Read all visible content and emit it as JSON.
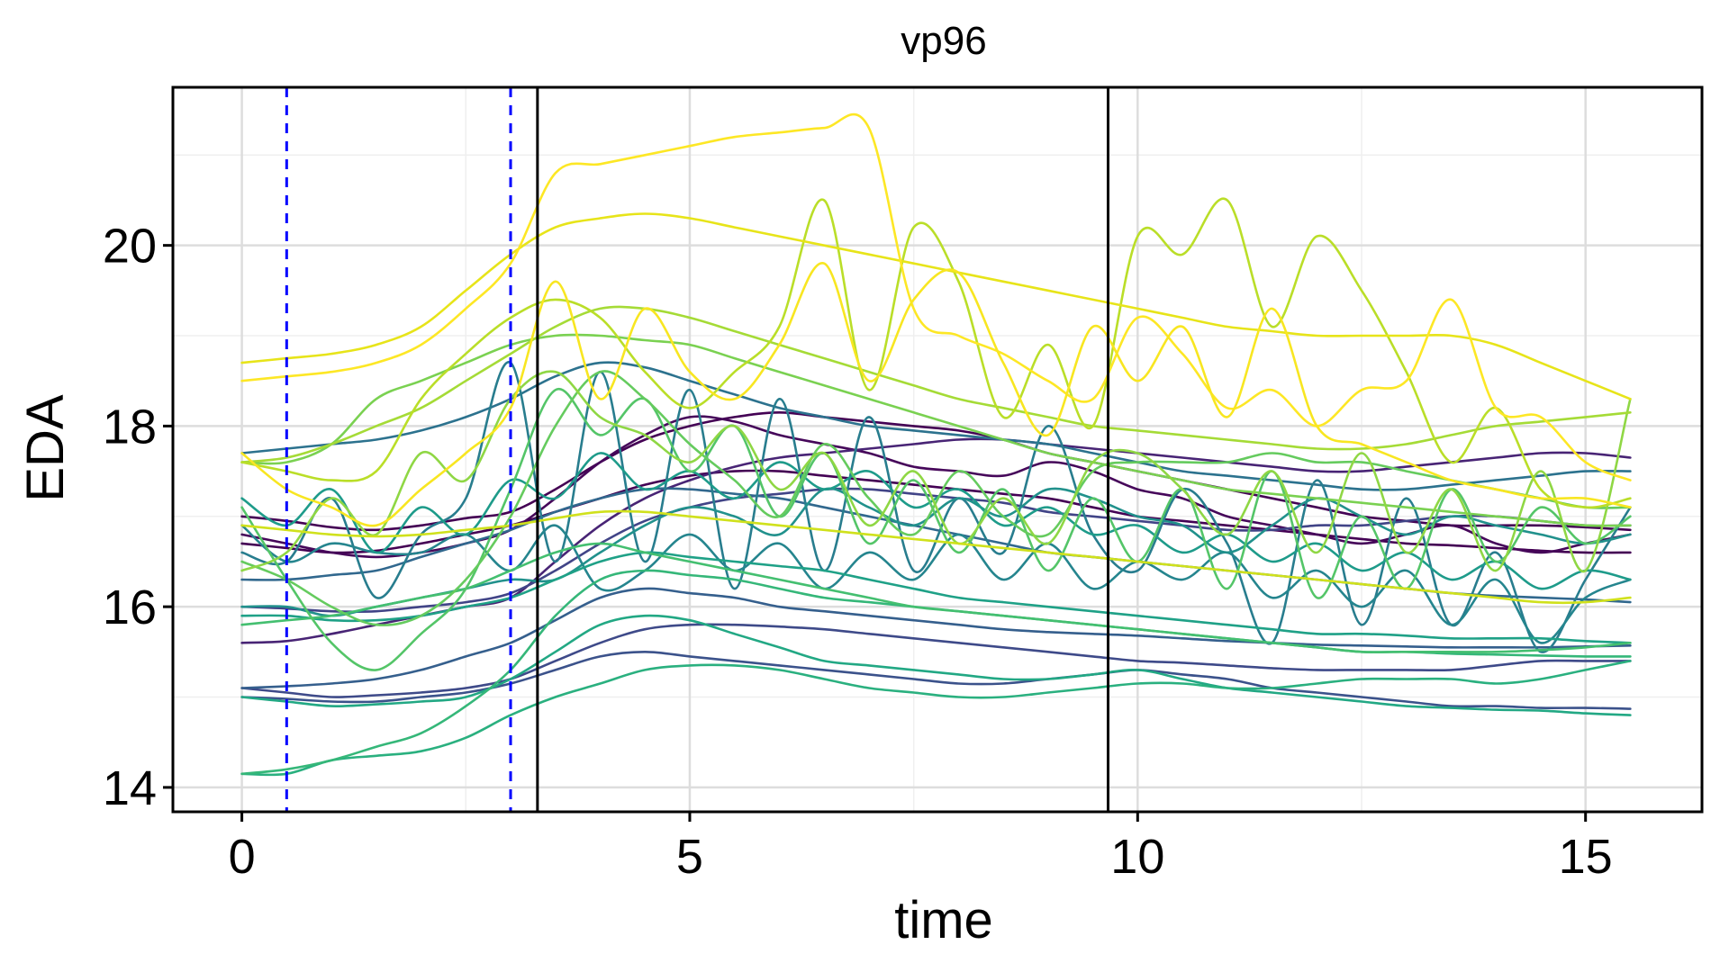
{
  "chart_data": {
    "type": "line",
    "title": "vp96",
    "xlabel": "time",
    "ylabel": "EDA",
    "xlim": [
      -0.77,
      16.3
    ],
    "ylim": [
      13.73,
      21.75
    ],
    "x_ticks": [
      0,
      5,
      10,
      15
    ],
    "x_tick_labels": [
      "0",
      "5",
      "10",
      "15"
    ],
    "y_ticks": [
      14,
      16,
      18,
      20
    ],
    "y_tick_labels": [
      "14",
      "16",
      "18",
      "20"
    ],
    "grid": true,
    "legend": "none",
    "colors": {
      "grid_major": "#dddddd",
      "grid_minor": "#efefef",
      "marker_dashed": "#0000ff",
      "marker_solid": "#000000"
    },
    "vlines": [
      {
        "x": 0.5,
        "style": "dashed",
        "color": "#0000ff"
      },
      {
        "x": 3.0,
        "style": "dashed",
        "color": "#0000ff"
      },
      {
        "x": 3.3,
        "style": "solid",
        "color": "#000000"
      },
      {
        "x": 9.67,
        "style": "solid",
        "color": "#000000"
      }
    ],
    "x": [
      0,
      0.5,
      1,
      1.5,
      2,
      2.5,
      3,
      3.5,
      4,
      4.5,
      5,
      5.5,
      6,
      6.5,
      7,
      7.5,
      8,
      8.5,
      9,
      9.5,
      10,
      10.5,
      11,
      11.5,
      12,
      12.5,
      13,
      13.5,
      14,
      14.5,
      15,
      15.5
    ],
    "series": [
      {
        "color": "#440154",
        "values": [
          17.0,
          16.95,
          16.88,
          16.85,
          16.9,
          16.98,
          17.05,
          17.3,
          17.6,
          17.85,
          18.0,
          18.1,
          18.15,
          18.1,
          18.05,
          18.0,
          17.95,
          17.85,
          17.7,
          17.6,
          17.5,
          17.4,
          17.3,
          17.2,
          17.1,
          17.0,
          16.95,
          16.9,
          16.9,
          16.9,
          16.88,
          16.85
        ]
      },
      {
        "color": "#440154",
        "values": [
          16.7,
          16.65,
          16.6,
          16.62,
          16.7,
          16.8,
          16.9,
          17.05,
          17.2,
          17.35,
          17.45,
          17.5,
          17.5,
          17.45,
          17.4,
          17.35,
          17.3,
          17.25,
          17.2,
          17.1,
          17.0,
          16.95,
          16.9,
          16.85,
          16.8,
          16.75,
          16.7,
          16.68,
          16.65,
          16.62,
          16.6,
          16.6
        ]
      },
      {
        "color": "#46075a",
        "values": [
          16.8,
          16.7,
          16.6,
          16.55,
          16.6,
          16.7,
          16.85,
          17.2,
          17.6,
          17.9,
          18.1,
          18.05,
          17.9,
          17.8,
          17.7,
          17.55,
          17.5,
          17.45,
          17.6,
          17.5,
          17.3,
          17.2,
          17.0,
          16.9,
          16.8,
          16.7,
          16.8,
          16.9,
          16.7,
          16.6,
          16.7,
          16.8
        ]
      },
      {
        "color": "#482475",
        "values": [
          15.6,
          15.62,
          15.7,
          15.8,
          15.9,
          16.0,
          16.1,
          16.5,
          16.9,
          17.2,
          17.4,
          17.55,
          17.65,
          17.7,
          17.75,
          17.8,
          17.85,
          17.85,
          17.8,
          17.75,
          17.7,
          17.65,
          17.6,
          17.55,
          17.5,
          17.5,
          17.55,
          17.6,
          17.65,
          17.7,
          17.7,
          17.65
        ]
      },
      {
        "color": "#414487",
        "values": [
          16.0,
          15.98,
          15.95,
          15.95,
          16.0,
          16.05,
          16.15,
          16.4,
          16.7,
          16.95,
          17.1,
          17.2,
          17.25,
          17.3,
          17.3,
          17.25,
          17.2,
          17.15,
          17.05,
          17.0,
          16.95,
          16.9,
          16.85,
          16.85,
          16.9,
          16.9,
          16.95,
          17.0,
          17.0,
          16.95,
          16.9,
          16.9
        ]
      },
      {
        "color": "#3e4a89",
        "values": [
          15.1,
          15.05,
          15.0,
          15.02,
          15.05,
          15.1,
          15.2,
          15.4,
          15.6,
          15.75,
          15.8,
          15.8,
          15.78,
          15.75,
          15.7,
          15.65,
          15.6,
          15.55,
          15.5,
          15.45,
          15.4,
          15.38,
          15.35,
          15.32,
          15.3,
          15.3,
          15.3,
          15.3,
          15.35,
          15.4,
          15.4,
          15.4
        ]
      },
      {
        "color": "#3b528b",
        "values": [
          15.0,
          14.98,
          14.95,
          14.95,
          15.0,
          15.05,
          15.15,
          15.3,
          15.45,
          15.5,
          15.45,
          15.4,
          15.35,
          15.3,
          15.25,
          15.2,
          15.15,
          15.15,
          15.2,
          15.25,
          15.3,
          15.25,
          15.2,
          15.1,
          15.05,
          15.0,
          14.95,
          14.9,
          14.9,
          14.88,
          14.88,
          14.87
        ]
      },
      {
        "color": "#355f8d",
        "values": [
          15.1,
          15.12,
          15.15,
          15.2,
          15.3,
          15.45,
          15.6,
          15.85,
          16.1,
          16.2,
          16.15,
          16.1,
          16.0,
          15.95,
          15.9,
          15.85,
          15.8,
          15.75,
          15.72,
          15.7,
          15.68,
          15.65,
          15.62,
          15.6,
          15.58,
          15.57,
          15.56,
          15.55,
          15.55,
          15.55,
          15.56,
          15.57
        ]
      },
      {
        "color": "#31688e",
        "values": [
          16.3,
          16.3,
          16.35,
          16.4,
          16.55,
          16.7,
          16.85,
          17.05,
          17.2,
          17.3,
          17.3,
          17.25,
          17.2,
          17.1,
          17.0,
          16.9,
          16.8,
          16.7,
          16.6,
          16.55,
          16.5,
          16.45,
          16.4,
          16.35,
          16.3,
          16.25,
          16.2,
          16.15,
          16.12,
          16.1,
          16.08,
          16.05
        ]
      },
      {
        "color": "#2c728e",
        "values": [
          17.7,
          17.75,
          17.8,
          17.85,
          17.95,
          18.1,
          18.3,
          18.55,
          18.7,
          18.65,
          18.5,
          18.35,
          18.2,
          18.1,
          18.0,
          17.95,
          17.9,
          17.85,
          17.8,
          17.7,
          17.6,
          17.5,
          17.45,
          17.4,
          17.35,
          17.3,
          17.3,
          17.35,
          17.4,
          17.45,
          17.5,
          17.5
        ]
      },
      {
        "color": "#287d8e",
        "values": [
          16.6,
          16.5,
          17.2,
          16.1,
          16.8,
          17.2,
          18.7,
          16.5,
          18.6,
          16.5,
          18.4,
          16.2,
          18.3,
          16.4,
          18.1,
          16.4,
          17.2,
          16.6,
          18.0,
          16.8,
          16.4,
          17.3,
          16.7,
          15.6,
          17.4,
          15.8,
          17.2,
          15.8,
          16.6,
          15.5,
          16.3,
          17.1
        ]
      },
      {
        "color": "#25858e",
        "values": [
          16.9,
          16.5,
          16.7,
          16.6,
          16.6,
          16.8,
          16.4,
          16.9,
          16.2,
          16.4,
          16.8,
          16.4,
          16.7,
          16.2,
          16.6,
          16.3,
          16.8,
          16.3,
          16.7,
          16.2,
          16.5,
          16.3,
          16.6,
          16.1,
          16.4,
          16.0,
          16.4,
          15.8,
          16.3,
          15.6,
          16.1,
          16.3
        ]
      },
      {
        "color": "#21918c",
        "values": [
          16.0,
          16.0,
          15.9,
          16.0,
          16.1,
          16.2,
          16.3,
          16.3,
          16.6,
          16.9,
          17.1,
          17.0,
          16.8,
          17.3,
          17.1,
          16.9,
          17.2,
          17.0,
          17.3,
          17.2,
          17.0,
          16.9,
          16.6,
          16.9,
          17.2,
          17.0,
          16.8,
          17.0,
          16.9,
          16.8,
          16.7,
          16.8
        ]
      },
      {
        "color": "#1e9b8a",
        "values": [
          17.2,
          16.9,
          17.3,
          16.6,
          17.1,
          16.8,
          17.4,
          17.2,
          17.7,
          17.3,
          17.5,
          17.2,
          17.6,
          17.3,
          17.5,
          17.1,
          17.3,
          16.9,
          17.1,
          16.8,
          16.9,
          16.6,
          16.8,
          16.5,
          16.7,
          16.4,
          16.6,
          16.3,
          16.5,
          16.2,
          16.4,
          16.3
        ]
      },
      {
        "color": "#1fa187",
        "values": [
          15.9,
          15.9,
          15.85,
          15.85,
          15.9,
          16.0,
          16.1,
          16.3,
          16.5,
          16.6,
          16.55,
          16.5,
          16.45,
          16.4,
          16.3,
          16.2,
          16.1,
          16.05,
          16.0,
          15.95,
          15.9,
          15.85,
          15.8,
          15.75,
          15.7,
          15.7,
          15.68,
          15.65,
          15.65,
          15.65,
          15.62,
          15.6
        ]
      },
      {
        "color": "#22a884",
        "values": [
          15.0,
          14.95,
          14.9,
          14.92,
          14.95,
          15.0,
          15.2,
          15.5,
          15.8,
          15.9,
          15.85,
          15.7,
          15.55,
          15.4,
          15.35,
          15.3,
          15.25,
          15.2,
          15.2,
          15.25,
          15.3,
          15.2,
          15.1,
          15.05,
          15.0,
          14.95,
          14.9,
          14.88,
          14.86,
          14.85,
          14.82,
          14.8
        ]
      },
      {
        "color": "#2ab07f",
        "values": [
          14.15,
          14.15,
          14.3,
          14.35,
          14.4,
          14.55,
          14.8,
          15.0,
          15.15,
          15.3,
          15.35,
          15.35,
          15.3,
          15.2,
          15.1,
          15.05,
          15.0,
          15.0,
          15.05,
          15.1,
          15.15,
          15.15,
          15.1,
          15.1,
          15.15,
          15.2,
          15.2,
          15.2,
          15.15,
          15.2,
          15.3,
          15.4
        ]
      },
      {
        "color": "#35b779",
        "values": [
          14.15,
          14.2,
          14.3,
          14.45,
          14.6,
          14.9,
          15.3,
          15.9,
          16.3,
          16.4,
          16.35,
          16.3,
          16.2,
          16.1,
          16.05,
          16.0,
          15.95,
          15.9,
          15.85,
          15.8,
          15.75,
          15.7,
          15.65,
          15.6,
          15.55,
          15.5,
          15.5,
          15.48,
          15.47,
          15.46,
          15.45,
          15.45
        ]
      },
      {
        "color": "#44bf70",
        "values": [
          15.8,
          15.85,
          15.9,
          16.0,
          16.1,
          16.2,
          16.4,
          16.6,
          16.7,
          16.6,
          16.5,
          16.4,
          16.3,
          16.2,
          16.1,
          16.0,
          15.95,
          15.9,
          15.85,
          15.8,
          15.75,
          15.7,
          15.65,
          15.6,
          15.55,
          15.5,
          15.5,
          15.5,
          15.5,
          15.52,
          15.55,
          15.6
        ]
      },
      {
        "color": "#54c568",
        "values": [
          17.1,
          16.3,
          15.6,
          15.3,
          15.7,
          16.2,
          17.3,
          18.4,
          17.9,
          18.3,
          17.5,
          18.0,
          17.0,
          17.7,
          16.7,
          17.4,
          16.6,
          17.3,
          16.4,
          17.2,
          16.5,
          17.3,
          16.2,
          17.5,
          16.1,
          17.0,
          16.2,
          17.3,
          16.5,
          17.1,
          16.7,
          17.0
        ]
      },
      {
        "color": "#65cb5e",
        "values": [
          16.5,
          16.3,
          16.0,
          15.8,
          15.9,
          16.3,
          17.0,
          18.0,
          18.6,
          18.3,
          17.8,
          17.4,
          17.0,
          17.8,
          17.2,
          16.8,
          17.5,
          17.0,
          16.8,
          17.5,
          17.6,
          17.6,
          17.6,
          17.7,
          17.6,
          17.6,
          17.5,
          17.4,
          17.3,
          17.2,
          17.1,
          17.1
        ]
      },
      {
        "color": "#7ad151",
        "values": [
          17.6,
          17.6,
          17.8,
          18.3,
          18.5,
          18.7,
          18.9,
          19.0,
          19.0,
          18.95,
          18.9,
          18.75,
          18.6,
          18.45,
          18.3,
          18.15,
          18.0,
          17.85,
          17.7,
          17.6,
          17.5,
          17.4,
          17.3,
          17.25,
          17.2,
          17.15,
          17.1,
          17.05,
          17.0,
          16.95,
          16.9,
          16.9
        ]
      },
      {
        "color": "#8fd744",
        "values": [
          16.4,
          16.6,
          17.2,
          16.8,
          17.7,
          17.4,
          18.3,
          18.6,
          18.1,
          17.9,
          17.6,
          18.0,
          17.3,
          17.7,
          16.9,
          17.5,
          16.7,
          17.2,
          16.7,
          17.6,
          17.7,
          17.3,
          16.8,
          17.5,
          16.6,
          17.7,
          16.6,
          17.3,
          16.4,
          17.5,
          16.4,
          18.3
        ]
      },
      {
        "color": "#a5db36",
        "values": [
          17.6,
          17.65,
          17.8,
          18.0,
          18.2,
          18.5,
          18.8,
          19.1,
          19.3,
          19.3,
          19.2,
          19.05,
          18.9,
          18.75,
          18.6,
          18.45,
          18.3,
          18.2,
          18.1,
          18.0,
          17.95,
          17.9,
          17.85,
          17.8,
          17.75,
          17.75,
          17.8,
          17.9,
          18.0,
          18.05,
          18.1,
          18.15
        ]
      },
      {
        "color": "#bade28",
        "values": [
          17.6,
          17.5,
          17.4,
          17.5,
          18.3,
          18.8,
          19.2,
          19.4,
          19.2,
          18.6,
          18.2,
          18.6,
          19.1,
          20.5,
          18.4,
          20.2,
          19.6,
          18.1,
          18.9,
          18.0,
          20.1,
          19.9,
          20.5,
          19.1,
          20.1,
          19.5,
          18.6,
          17.6,
          18.2,
          17.3,
          17.1,
          17.2
        ]
      },
      {
        "color": "#d0e11c",
        "values": [
          16.9,
          16.85,
          16.8,
          16.78,
          16.8,
          16.85,
          16.9,
          16.98,
          17.05,
          17.05,
          17.0,
          16.95,
          16.9,
          16.85,
          16.8,
          16.75,
          16.7,
          16.65,
          16.6,
          16.55,
          16.5,
          16.45,
          16.4,
          16.35,
          16.3,
          16.25,
          16.2,
          16.15,
          16.1,
          16.05,
          16.05,
          16.1
        ]
      },
      {
        "color": "#e7e419",
        "values": [
          18.7,
          18.75,
          18.8,
          18.9,
          19.1,
          19.5,
          19.9,
          20.2,
          20.3,
          20.35,
          20.3,
          20.2,
          20.1,
          20.0,
          19.9,
          19.8,
          19.7,
          19.6,
          19.5,
          19.4,
          19.3,
          19.2,
          19.1,
          19.05,
          19.0,
          19.0,
          19.0,
          19.0,
          18.9,
          18.7,
          18.5,
          18.3
        ]
      },
      {
        "color": "#fde725",
        "values": [
          18.5,
          18.55,
          18.6,
          18.7,
          18.9,
          19.3,
          19.8,
          20.8,
          20.9,
          21.0,
          21.1,
          21.2,
          21.25,
          21.3,
          21.3,
          19.3,
          19.0,
          18.8,
          18.5,
          18.3,
          19.2,
          18.8,
          18.2,
          18.4,
          18.0,
          18.4,
          18.5,
          19.4,
          18.2,
          18.1,
          17.6,
          17.4
        ]
      },
      {
        "color": "#f8e621",
        "values": [
          17.7,
          17.3,
          17.1,
          16.9,
          17.3,
          17.7,
          18.2,
          19.6,
          18.3,
          19.3,
          18.6,
          18.3,
          18.9,
          19.8,
          18.5,
          19.4,
          19.7,
          18.7,
          17.9,
          19.1,
          18.5,
          19.1,
          18.1,
          19.3,
          18.0,
          17.8,
          17.6,
          17.4,
          17.3,
          17.2,
          17.2,
          17.1
        ]
      }
    ]
  }
}
